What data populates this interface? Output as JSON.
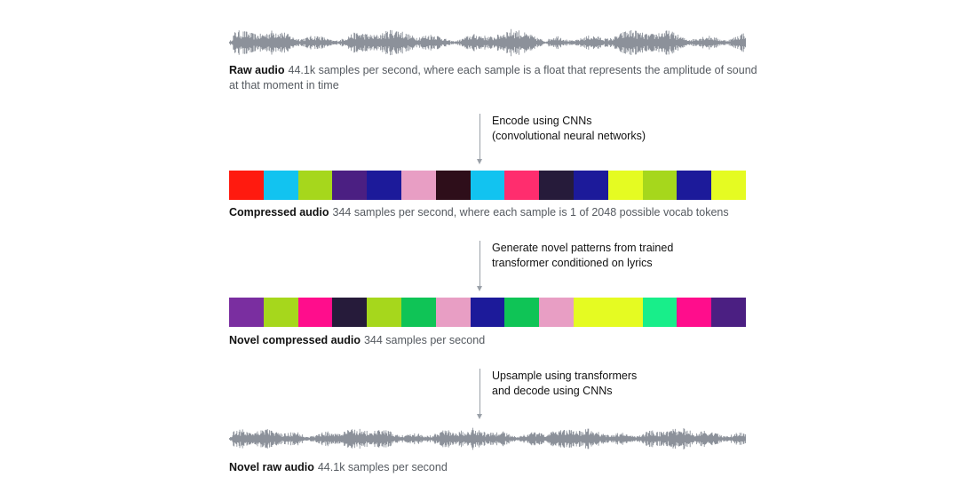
{
  "raw_audio": {
    "title": "Raw audio",
    "description": "44.1k samples per second, where each sample is a float that represents the amplitude of sound at that moment in time"
  },
  "step1": {
    "line1": "Encode using CNNs",
    "line2": "(convolutional neural networks)"
  },
  "compressed_audio": {
    "title": "Compressed audio",
    "description": "344 samples per second, where each sample is 1 of 2048 possible vocab tokens",
    "tokens": [
      "#ff1a0f",
      "#12c3f0",
      "#a6d71c",
      "#4b1f82",
      "#1c1a9a",
      "#e89ec4",
      "#2e0e1a",
      "#12c3f0",
      "#ff2d6e",
      "#261b3a",
      "#1c1a9a",
      "#e5fb22",
      "#a6d71c",
      "#1c1a9a",
      "#e5fb22"
    ]
  },
  "step2": {
    "line1": "Generate novel patterns from trained",
    "line2": "transformer conditioned on lyrics"
  },
  "novel_compressed_audio": {
    "title": "Novel compressed audio",
    "description": "344 samples per second",
    "tokens": [
      "#7a2ea0",
      "#a6d71c",
      "#ff0d8c",
      "#261b3a",
      "#a6d71c",
      "#0fc456",
      "#e89ec4",
      "#1c1a9a",
      "#0fc456",
      "#e89ec4",
      "#e5fb22",
      "#e5fb22",
      "#18ee8a",
      "#ff0d8c",
      "#4b1f82"
    ]
  },
  "step3": {
    "line1": "Upsample using transformers",
    "line2": "and decode using CNNs"
  },
  "novel_raw_audio": {
    "title": "Novel raw audio",
    "description": "44.1k samples per second"
  },
  "waveform_color": "#8c919a",
  "arrow_color": "#9aa0a8"
}
